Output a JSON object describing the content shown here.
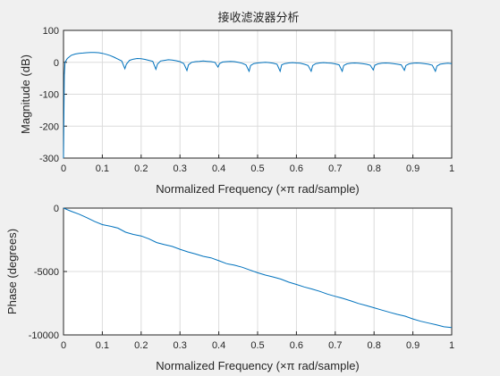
{
  "figure": {
    "title": "接收滤波器分析",
    "background": "#f0f0f0",
    "line_color": "#0072bd"
  },
  "chart_data": [
    {
      "type": "line",
      "name": "magnitude",
      "xlabel": "Normalized Frequency  (×π rad/sample)",
      "ylabel": "Magnitude (dB)",
      "xlim": [
        0,
        1
      ],
      "ylim": [
        -300,
        100
      ],
      "xticks": [
        "0",
        "0.1",
        "0.2",
        "0.3",
        "0.4",
        "0.5",
        "0.6",
        "0.7",
        "0.8",
        "0.9",
        "1"
      ],
      "yticks": [
        "100",
        "0",
        "-100",
        "-200",
        "-300"
      ],
      "grid": true,
      "series": [
        {
          "x": [
            0,
            0.002,
            0.004,
            0.01,
            0.02,
            0.03,
            0.04,
            0.05,
            0.06,
            0.07,
            0.08,
            0.09,
            0.1,
            0.11,
            0.12,
            0.13,
            0.14,
            0.15,
            0.158,
            0.162,
            0.17,
            0.18,
            0.19,
            0.2,
            0.21,
            0.22,
            0.23,
            0.238,
            0.242,
            0.25,
            0.26,
            0.27,
            0.28,
            0.29,
            0.3,
            0.31,
            0.318,
            0.322,
            0.33,
            0.34,
            0.35,
            0.36,
            0.37,
            0.38,
            0.39,
            0.398,
            0.402,
            0.41,
            0.42,
            0.43,
            0.44,
            0.45,
            0.46,
            0.47,
            0.478,
            0.482,
            0.49,
            0.5,
            0.51,
            0.52,
            0.53,
            0.54,
            0.55,
            0.558,
            0.562,
            0.57,
            0.58,
            0.59,
            0.6,
            0.61,
            0.62,
            0.63,
            0.638,
            0.642,
            0.65,
            0.66,
            0.67,
            0.68,
            0.69,
            0.7,
            0.71,
            0.718,
            0.722,
            0.73,
            0.74,
            0.75,
            0.76,
            0.77,
            0.78,
            0.79,
            0.798,
            0.802,
            0.81,
            0.82,
            0.83,
            0.84,
            0.85,
            0.86,
            0.87,
            0.878,
            0.882,
            0.89,
            0.9,
            0.91,
            0.92,
            0.93,
            0.94,
            0.95,
            0.958,
            0.962,
            0.97,
            0.98,
            0.99,
            1.0
          ],
          "y": [
            -300,
            -40,
            0,
            12,
            22,
            26,
            28,
            29,
            30,
            31,
            31,
            30,
            28,
            25,
            21,
            16,
            10,
            4,
            -20,
            -6,
            6,
            10,
            12,
            11,
            9,
            6,
            3,
            -22,
            -6,
            4,
            6,
            8,
            7,
            5,
            2,
            -4,
            -26,
            -8,
            0,
            2,
            3,
            4,
            3,
            2,
            0,
            -15,
            -4,
            1,
            2,
            3,
            2,
            0,
            -3,
            -8,
            -28,
            -10,
            -4,
            -2,
            -1,
            0,
            -1,
            -3,
            -6,
            -28,
            -8,
            -4,
            -2,
            -1,
            -2,
            -3,
            -6,
            -10,
            -28,
            -10,
            -4,
            -2,
            -1,
            -2,
            -3,
            -5,
            -8,
            -28,
            -10,
            -5,
            -3,
            -2,
            -3,
            -4,
            -6,
            -9,
            -24,
            -9,
            -5,
            -3,
            -2,
            -3,
            -4,
            -6,
            -8,
            -25,
            -10,
            -5,
            -3,
            -2,
            -3,
            -4,
            -6,
            -9,
            -28,
            -12,
            -6,
            -4,
            -3,
            -4
          ]
        }
      ]
    },
    {
      "type": "line",
      "name": "phase",
      "xlabel": "Normalized Frequency  (×π rad/sample)",
      "ylabel": "Phase (degrees)",
      "xlim": [
        0,
        1
      ],
      "ylim": [
        -10000,
        0
      ],
      "xticks": [
        "0",
        "0.1",
        "0.2",
        "0.3",
        "0.4",
        "0.5",
        "0.6",
        "0.7",
        "0.8",
        "0.9",
        "1"
      ],
      "yticks": [
        "0",
        "-5000",
        "-10000"
      ],
      "grid": true,
      "series": [
        {
          "x": [
            0,
            0.02,
            0.04,
            0.06,
            0.08,
            0.1,
            0.12,
            0.14,
            0.16,
            0.18,
            0.2,
            0.22,
            0.24,
            0.26,
            0.28,
            0.3,
            0.32,
            0.34,
            0.36,
            0.38,
            0.4,
            0.42,
            0.44,
            0.46,
            0.48,
            0.5,
            0.52,
            0.54,
            0.56,
            0.58,
            0.6,
            0.62,
            0.64,
            0.66,
            0.68,
            0.7,
            0.72,
            0.74,
            0.76,
            0.78,
            0.8,
            0.82,
            0.84,
            0.86,
            0.88,
            0.9,
            0.92,
            0.94,
            0.96,
            0.98,
            1.0
          ],
          "y": [
            0,
            -250,
            -480,
            -750,
            -1050,
            -1300,
            -1420,
            -1580,
            -1900,
            -2080,
            -2200,
            -2420,
            -2720,
            -2880,
            -3020,
            -3250,
            -3450,
            -3620,
            -3800,
            -3920,
            -4150,
            -4380,
            -4500,
            -4660,
            -4880,
            -5100,
            -5280,
            -5430,
            -5600,
            -5840,
            -6020,
            -6220,
            -6380,
            -6560,
            -6780,
            -6960,
            -7120,
            -7320,
            -7520,
            -7680,
            -7860,
            -8040,
            -8220,
            -8380,
            -8520,
            -8740,
            -8920,
            -9060,
            -9200,
            -9360,
            -9420
          ]
        }
      ]
    }
  ]
}
